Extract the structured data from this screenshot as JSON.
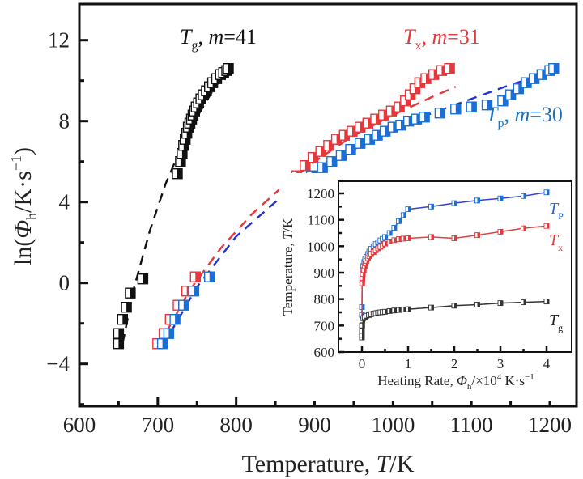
{
  "chart_data": [
    {
      "id": "main",
      "type": "scatter",
      "title": "",
      "xlabel": "Temperature, T/K",
      "xlabel_parts": {
        "pre": "Temperature, ",
        "italic": "T",
        "post": "/K"
      },
      "ylabel": "ln(Φh/K·s⁻¹)",
      "ylabel_parts": {
        "pre": "ln(",
        "italic": "Φ",
        "sub": "h",
        "mid": "/K·s",
        "sup": "−1",
        "post": ")"
      },
      "xlim": [
        600,
        1250
      ],
      "ylim": [
        -6,
        14
      ],
      "xticks": [
        600,
        700,
        800,
        900,
        1000,
        1100,
        1200
      ],
      "xtick_labels": [
        "600",
        "700",
        "800",
        "900",
        "1000",
        "1100",
        "1200"
      ],
      "yticks": [
        -4,
        0,
        4,
        8,
        12
      ],
      "ytick_labels": [
        "−4",
        "0",
        "4",
        "8",
        "12"
      ],
      "grid": false,
      "series": [
        {
          "name": "Tg",
          "label": {
            "T": "T",
            "sub": "g",
            "rest": ", ",
            "m": "m",
            "eq": "=41"
          },
          "color": "#111111",
          "fit_color": "#111111",
          "label_position": "top-left",
          "x": [
            650,
            650,
            655,
            660,
            665,
            681,
            725,
            729,
            731,
            733,
            735,
            737,
            739,
            741,
            743,
            745,
            747,
            749,
            752,
            755,
            758,
            762,
            766,
            770,
            775,
            780,
            784,
            788,
            790
          ],
          "y": [
            -3.0,
            -2.5,
            -1.8,
            -1.2,
            -0.5,
            0.2,
            5.4,
            6.0,
            6.4,
            6.8,
            7.1,
            7.4,
            7.7,
            7.9,
            8.1,
            8.3,
            8.5,
            8.7,
            8.9,
            9.1,
            9.3,
            9.5,
            9.7,
            9.9,
            10.1,
            10.3,
            10.4,
            10.5,
            10.6
          ],
          "fit": {
            "x": [
              655,
              670,
              690,
              710,
              730,
              750,
              770,
              790
            ],
            "y": [
              -3.0,
              -0.2,
              2.6,
              4.9,
              6.7,
              8.2,
              9.5,
              10.6
            ]
          }
        },
        {
          "name": "Tx",
          "label": {
            "T": "T",
            "sub": "x",
            "rest": ", ",
            "m": "m",
            "eq": "=31"
          },
          "color": "#e8363a",
          "fit_color": "#e8363a",
          "label_position": "top-center",
          "x": [
            700,
            708,
            716,
            726,
            737,
            748,
            866,
            877,
            888,
            898,
            908,
            918,
            928,
            938,
            948,
            958,
            968,
            978,
            988,
            998,
            1008,
            1016,
            1022,
            1028,
            1034,
            1042,
            1052,
            1062,
            1072
          ],
          "y": [
            -3.0,
            -2.5,
            -1.8,
            -1.1,
            -0.4,
            0.3,
            4.6,
            5.3,
            5.8,
            6.2,
            6.5,
            6.8,
            7.1,
            7.3,
            7.5,
            7.7,
            7.9,
            8.1,
            8.3,
            8.5,
            8.7,
            9.0,
            9.3,
            9.6,
            9.9,
            10.1,
            10.3,
            10.5,
            10.6
          ],
          "fit": {
            "x": [
              700,
              740,
              780,
              820,
              860,
              900,
              950,
              1000,
              1050,
              1080
            ],
            "y": [
              -3.2,
              -0.4,
              1.7,
              3.4,
              4.8,
              6.0,
              7.3,
              8.3,
              9.2,
              9.7
            ]
          }
        },
        {
          "name": "Tp",
          "label": {
            "T": "T",
            "sub": "p",
            "rest": ", ",
            "m": "m",
            "eq": "=30"
          },
          "color": "#1a6fd6",
          "fit_color": "#2233cc",
          "label_position": "right",
          "x": [
            706,
            714,
            722,
            733,
            746,
            766,
            886,
            896,
            910,
            922,
            934,
            946,
            958,
            970,
            980,
            990,
            1000,
            1010,
            1020,
            1030,
            1040,
            1060,
            1080,
            1100,
            1120,
            1140,
            1150,
            1160,
            1170,
            1180,
            1190,
            1200,
            1205
          ],
          "y": [
            -3.0,
            -2.5,
            -1.8,
            -1.1,
            -0.4,
            0.3,
            4.6,
            5.3,
            5.7,
            6.0,
            6.3,
            6.6,
            6.9,
            7.1,
            7.3,
            7.5,
            7.7,
            7.8,
            8.0,
            8.1,
            8.2,
            8.4,
            8.6,
            8.7,
            8.8,
            9.0,
            9.3,
            9.6,
            9.9,
            10.1,
            10.3,
            10.5,
            10.6
          ],
          "fit": {
            "x": [
              705,
              750,
              800,
              850,
              900,
              950,
              1000,
              1050,
              1100,
              1150,
              1200
            ],
            "y": [
              -3.2,
              -0.2,
              2.3,
              4.0,
              5.4,
              6.6,
              7.6,
              8.4,
              9.1,
              9.8,
              10.4
            ]
          }
        }
      ]
    },
    {
      "id": "inset",
      "type": "line",
      "title": "",
      "xlabel": "Heating Rate, Φh/×10⁴ K·s⁻¹",
      "xlabel_parts": {
        "pre": "Heating Rate, ",
        "italic": "Φ",
        "sub": "h",
        "post": "/×10",
        "sup": "4",
        "post2": " K·s",
        "sup2": "−1"
      },
      "ylabel": "Temperature, T/K",
      "ylabel_parts": {
        "pre": "Temperature, ",
        "italic": "T",
        "post": "/K"
      },
      "xlim": [
        -0.35,
        4.35
      ],
      "ylim": [
        600,
        1240
      ],
      "xticks": [
        0,
        1,
        2,
        3,
        4
      ],
      "xtick_labels": [
        "0",
        "1",
        "2",
        "3",
        "4"
      ],
      "yticks": [
        600,
        700,
        800,
        900,
        1000,
        1100,
        1200
      ],
      "ytick_labels": [
        "600",
        "700",
        "800",
        "900",
        "1000",
        "1100",
        "1200"
      ],
      "grid": false,
      "series": [
        {
          "name": "Tp",
          "label": {
            "T": "T",
            "sub": "P"
          },
          "color": "#1a6fd6",
          "line_color": "#3344cc",
          "x": [
            0,
            0,
            0,
            0.005,
            0.01,
            0.02,
            0.03,
            0.05,
            0.07,
            0.1,
            0.13,
            0.16,
            0.2,
            0.25,
            0.3,
            0.35,
            0.4,
            0.45,
            0.5,
            0.6,
            0.7,
            0.8,
            0.9,
            1.0,
            1.5,
            2.0,
            2.5,
            3.0,
            3.5,
            4.0
          ],
          "y": [
            700,
            740,
            770,
            870,
            890,
            910,
            925,
            940,
            950,
            960,
            970,
            980,
            990,
            1000,
            1008,
            1015,
            1022,
            1028,
            1035,
            1050,
            1070,
            1095,
            1118,
            1140,
            1150,
            1163,
            1173,
            1181,
            1190,
            1204
          ]
        },
        {
          "name": "Tx",
          "label": {
            "T": "T",
            "sub": "x"
          },
          "color": "#e8363a",
          "line_color": "#e04040",
          "x": [
            0,
            0.005,
            0.01,
            0.02,
            0.04,
            0.06,
            0.08,
            0.1,
            0.13,
            0.16,
            0.2,
            0.25,
            0.3,
            0.35,
            0.4,
            0.45,
            0.5,
            0.6,
            0.7,
            0.8,
            0.9,
            1.0,
            1.5,
            2.0,
            2.5,
            3.0,
            3.5,
            4.0
          ],
          "y": [
            700,
            860,
            880,
            895,
            910,
            925,
            935,
            945,
            955,
            962,
            970,
            978,
            985,
            992,
            998,
            1003,
            1010,
            1018,
            1023,
            1027,
            1029,
            1030,
            1035,
            1030,
            1042,
            1055,
            1068,
            1077
          ]
        },
        {
          "name": "Tg",
          "label": {
            "T": "T",
            "sub": "g"
          },
          "color": "#333333",
          "line_color": "#333333",
          "x": [
            0,
            0,
            0,
            0.005,
            0.01,
            0.03,
            0.06,
            0.1,
            0.15,
            0.2,
            0.25,
            0.3,
            0.35,
            0.4,
            0.45,
            0.5,
            0.6,
            0.7,
            0.8,
            0.9,
            1.0,
            1.5,
            2.0,
            2.5,
            3.0,
            3.5,
            4.0
          ],
          "y": [
            655,
            665,
            680,
            700,
            720,
            728,
            732,
            737,
            740,
            743,
            745,
            747,
            749,
            750,
            751,
            752,
            755,
            757,
            759,
            761,
            762,
            768,
            775,
            779,
            785,
            788,
            791
          ]
        }
      ]
    }
  ]
}
